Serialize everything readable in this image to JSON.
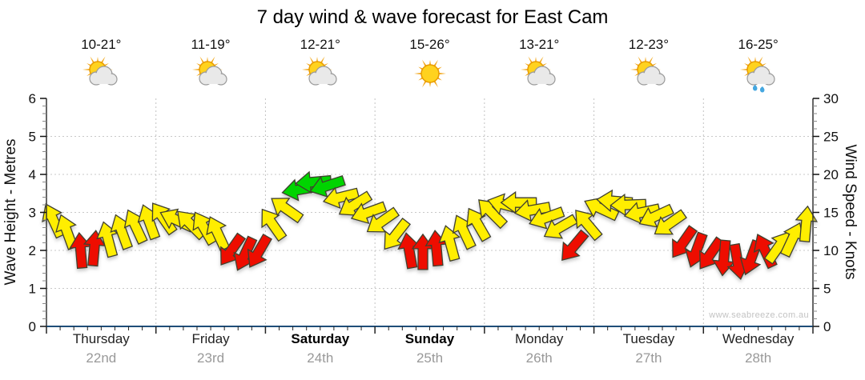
{
  "title": "7 day wind & wave forecast for East Cam",
  "watermark": "www.seabreeze.com.au",
  "chart_data": {
    "type": "scatter",
    "subtype": "wind-direction-arrows",
    "title": "7 day wind & wave forecast for East Cam",
    "left_axis": {
      "label": "Wave Height - Metres",
      "min": 0,
      "max": 6,
      "ticks": [
        0,
        1,
        2,
        3,
        4,
        5,
        6
      ]
    },
    "right_axis": {
      "label": "Wind Speed - Knots",
      "min": 0,
      "max": 30,
      "ticks": [
        0,
        5,
        10,
        15,
        20,
        25,
        30
      ]
    },
    "grid": "dotted horizontal each metre, dotted vertical at day boundaries",
    "steps_per_day": 8,
    "days": [
      {
        "name": "Thursday",
        "date": "22nd",
        "temp_range": "10-21°",
        "icon": "sun-cloud-icon",
        "weekend": false
      },
      {
        "name": "Friday",
        "date": "23rd",
        "temp_range": "11-19°",
        "icon": "sun-cloud-icon",
        "weekend": false
      },
      {
        "name": "Saturday",
        "date": "24th",
        "temp_range": "12-21°",
        "icon": "sun-cloud-icon",
        "weekend": true
      },
      {
        "name": "Sunday",
        "date": "25th",
        "temp_range": "15-26°",
        "icon": "sun-icon",
        "weekend": true
      },
      {
        "name": "Monday",
        "date": "26th",
        "temp_range": "13-21°",
        "icon": "sun-cloud-icon",
        "weekend": false
      },
      {
        "name": "Tuesday",
        "date": "27th",
        "temp_range": "12-23°",
        "icon": "sun-cloud-icon",
        "weekend": false
      },
      {
        "name": "Wednesday",
        "date": "28th",
        "temp_range": "16-25°",
        "icon": "sun-cloud-rain-icon",
        "weekend": false
      }
    ],
    "arrow_colors": {
      "yellow": "#ffee00",
      "red": "#ee1100",
      "green": "#00d400",
      "outline": "#3f3f2f"
    },
    "color_meaning": {
      "red": "lighter winds ~10kn or less",
      "yellow": "moderate winds 10-18kn",
      "green": "fresh winds ~18-20kn"
    },
    "arrows": [
      {
        "kn": 14.0,
        "dir": -25,
        "c": "yellow"
      },
      {
        "kn": 12.5,
        "dir": -20,
        "c": "yellow"
      },
      {
        "kn": 10.0,
        "dir": -5,
        "c": "red"
      },
      {
        "kn": 10.3,
        "dir": 5,
        "c": "red"
      },
      {
        "kn": 11.5,
        "dir": -15,
        "c": "yellow"
      },
      {
        "kn": 12.5,
        "dir": -20,
        "c": "yellow"
      },
      {
        "kn": 13.2,
        "dir": -25,
        "c": "yellow"
      },
      {
        "kn": 13.8,
        "dir": -20,
        "c": "yellow"
      },
      {
        "kn": 14.3,
        "dir": -35,
        "c": "yellow"
      },
      {
        "kn": 14.0,
        "dir": -65,
        "c": "yellow"
      },
      {
        "kn": 13.5,
        "dir": -45,
        "c": "yellow"
      },
      {
        "kn": 13.0,
        "dir": -30,
        "c": "yellow"
      },
      {
        "kn": 12.3,
        "dir": -25,
        "c": "yellow"
      },
      {
        "kn": 10.0,
        "dir": 215,
        "c": "red"
      },
      {
        "kn": 9.5,
        "dir": 205,
        "c": "red"
      },
      {
        "kn": 9.8,
        "dir": 210,
        "c": "red"
      },
      {
        "kn": 13.5,
        "dir": -35,
        "c": "yellow"
      },
      {
        "kn": 15.5,
        "dir": -55,
        "c": "yellow"
      },
      {
        "kn": 18.0,
        "dir": 260,
        "c": "green"
      },
      {
        "kn": 19.0,
        "dir": 265,
        "c": "green"
      },
      {
        "kn": 18.5,
        "dir": 252,
        "c": "green"
      },
      {
        "kn": 17.0,
        "dir": 256,
        "c": "yellow"
      },
      {
        "kn": 16.0,
        "dir": 238,
        "c": "yellow"
      },
      {
        "kn": 15.0,
        "dir": 250,
        "c": "yellow"
      },
      {
        "kn": 13.8,
        "dir": 235,
        "c": "yellow"
      },
      {
        "kn": 12.0,
        "dir": 218,
        "c": "yellow"
      },
      {
        "kn": 10.0,
        "dir": -10,
        "c": "red"
      },
      {
        "kn": 9.8,
        "dir": 0,
        "c": "red"
      },
      {
        "kn": 10.3,
        "dir": -5,
        "c": "red"
      },
      {
        "kn": 11.0,
        "dir": -15,
        "c": "yellow"
      },
      {
        "kn": 12.5,
        "dir": -25,
        "c": "yellow"
      },
      {
        "kn": 13.5,
        "dir": -30,
        "c": "yellow"
      },
      {
        "kn": 15.0,
        "dir": -45,
        "c": "yellow"
      },
      {
        "kn": 16.0,
        "dir": -75,
        "c": "yellow"
      },
      {
        "kn": 16.3,
        "dir": 270,
        "c": "yellow"
      },
      {
        "kn": 15.3,
        "dir": 260,
        "c": "yellow"
      },
      {
        "kn": 14.3,
        "dir": 250,
        "c": "yellow"
      },
      {
        "kn": 13.0,
        "dir": 240,
        "c": "yellow"
      },
      {
        "kn": 10.5,
        "dir": 220,
        "c": "red"
      },
      {
        "kn": 13.5,
        "dir": -40,
        "c": "yellow"
      },
      {
        "kn": 15.5,
        "dir": -65,
        "c": "yellow"
      },
      {
        "kn": 16.5,
        "dir": 275,
        "c": "yellow"
      },
      {
        "kn": 16.0,
        "dir": 268,
        "c": "yellow"
      },
      {
        "kn": 15.0,
        "dir": 258,
        "c": "yellow"
      },
      {
        "kn": 14.5,
        "dir": 245,
        "c": "yellow"
      },
      {
        "kn": 13.5,
        "dir": 235,
        "c": "yellow"
      },
      {
        "kn": 11.0,
        "dir": 215,
        "c": "red"
      },
      {
        "kn": 10.0,
        "dir": 200,
        "c": "red"
      },
      {
        "kn": 9.5,
        "dir": 215,
        "c": "red"
      },
      {
        "kn": 9.0,
        "dir": 185,
        "c": "red"
      },
      {
        "kn": 8.5,
        "dir": 170,
        "c": "red"
      },
      {
        "kn": 9.0,
        "dir": 200,
        "c": "red"
      },
      {
        "kn": 10.0,
        "dir": -25,
        "c": "red"
      },
      {
        "kn": 10.5,
        "dir": 35,
        "c": "yellow"
      },
      {
        "kn": 11.5,
        "dir": 25,
        "c": "yellow"
      },
      {
        "kn": 13.5,
        "dir": 5,
        "c": "yellow"
      }
    ]
  }
}
